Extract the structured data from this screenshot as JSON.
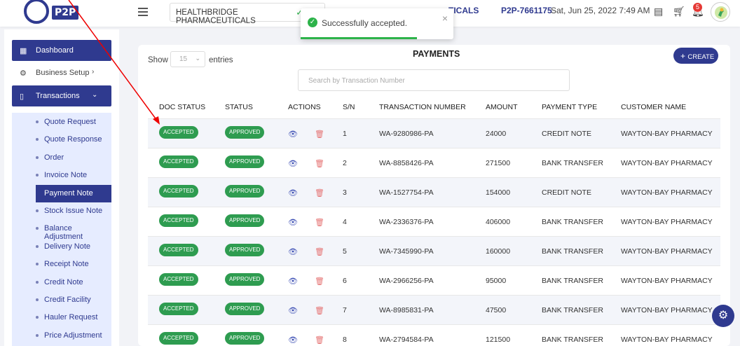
{
  "header": {
    "logo_text": "P2P",
    "org_selected": "HEALTHBRIDGE PHARMACEUTICALS",
    "org_right": "TICALS",
    "code": "P2P-7661175",
    "datetime": "Sat, Jun 25, 2022 7:49 AM",
    "notification_count": "5"
  },
  "toast": {
    "message": "Successfully accepted.",
    "close": "×",
    "progress": 0.76
  },
  "sidebar": {
    "dashboard": "Dashboard",
    "business_setup": "Business Setup",
    "transactions": "Transactions",
    "sub_items": [
      "Quote Request",
      "Quote Response",
      "Order",
      "Invoice Note",
      "Payment Note",
      "Stock Issue Note",
      "Balance Adjustment",
      "Delivery Note",
      "Receipt Note",
      "Credit Note",
      "Credit Facility",
      "Hauler Request",
      "Price Adjustment"
    ],
    "active_sub": "Payment Note"
  },
  "page": {
    "title": "PAYMENTS",
    "show": "Show",
    "page_size": "15",
    "entries": "entries",
    "search_placeholder": "Search by Transaction Number",
    "create": "CREATE"
  },
  "table": {
    "headers": [
      "DOC STATUS",
      "STATUS",
      "ACTIONS",
      "S/N",
      "TRANSACTION NUMBER",
      "AMOUNT",
      "PAYMENT TYPE",
      "CUSTOMER NAME"
    ],
    "rows": [
      {
        "doc": "ACCEPTED",
        "status": "APPROVED",
        "sn": "1",
        "txn": "WA-9280986-PA",
        "amount": "24000",
        "type": "CREDIT NOTE",
        "customer": "WAYTON-BAY PHARMACY"
      },
      {
        "doc": "ACCEPTED",
        "status": "APPROVED",
        "sn": "2",
        "txn": "WA-8858426-PA",
        "amount": "271500",
        "type": "BANK TRANSFER",
        "customer": "WAYTON-BAY PHARMACY"
      },
      {
        "doc": "ACCEPTED",
        "status": "APPROVED",
        "sn": "3",
        "txn": "WA-1527754-PA",
        "amount": "154000",
        "type": "CREDIT NOTE",
        "customer": "WAYTON-BAY PHARMACY"
      },
      {
        "doc": "ACCEPTED",
        "status": "APPROVED",
        "sn": "4",
        "txn": "WA-2336376-PA",
        "amount": "406000",
        "type": "BANK TRANSFER",
        "customer": "WAYTON-BAY PHARMACY"
      },
      {
        "doc": "ACCEPTED",
        "status": "APPROVED",
        "sn": "5",
        "txn": "WA-7345990-PA",
        "amount": "160000",
        "type": "BANK TRANSFER",
        "customer": "WAYTON-BAY PHARMACY"
      },
      {
        "doc": "ACCEPTED",
        "status": "APPROVED",
        "sn": "6",
        "txn": "WA-2966256-PA",
        "amount": "95000",
        "type": "BANK TRANSFER",
        "customer": "WAYTON-BAY PHARMACY"
      },
      {
        "doc": "ACCEPTED",
        "status": "APPROVED",
        "sn": "7",
        "txn": "WA-8985831-PA",
        "amount": "47500",
        "type": "BANK TRANSFER",
        "customer": "WAYTON-BAY PHARMACY"
      },
      {
        "doc": "ACCEPTED",
        "status": "APPROVED",
        "sn": "8",
        "txn": "WA-2794584-PA",
        "amount": "121500",
        "type": "BANK TRANSFER",
        "customer": "WAYTON-BAY PHARMACY"
      }
    ]
  },
  "colors": {
    "brand": "#2f3a8f",
    "success": "#2e9c50",
    "danger": "#e53935",
    "sub_bg": "#e6ecff"
  }
}
